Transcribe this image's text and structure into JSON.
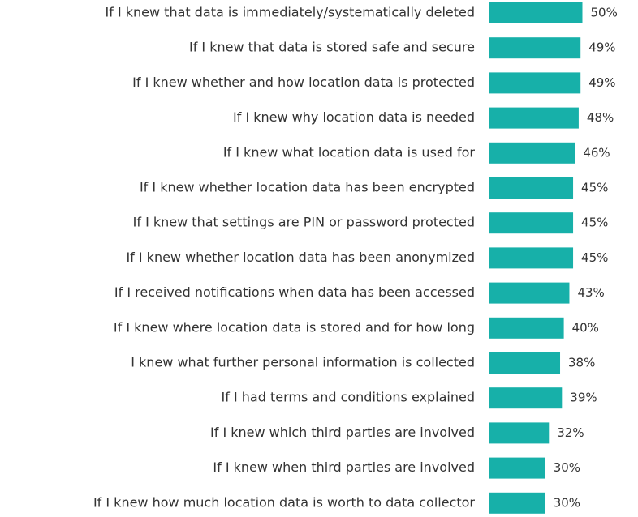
{
  "chart_data": {
    "type": "bar",
    "orientation": "horizontal",
    "categories": [
      "If I knew that data is immediately/systematically deleted",
      "If I knew that data is stored safe and secure",
      "If I knew whether and how location data is protected",
      "If I knew why location data is needed",
      "If I knew what location data is used for",
      "If I knew whether location data has been encrypted",
      "If I knew that settings are PIN or password protected",
      "If I knew whether location data has been anonymized",
      "If I received notifications when data has been accessed",
      "If I knew where location data is stored and for how long",
      "I knew what further personal information is collected",
      "If I had terms and conditions explained",
      "If I knew which third parties are involved",
      "If I knew when third parties are involved",
      "If I knew how much location data is worth to data collector"
    ],
    "values": [
      50,
      49,
      49,
      48,
      46,
      45,
      45,
      45,
      43,
      40,
      38,
      39,
      32,
      30,
      30
    ],
    "value_labels": [
      "50%",
      "49%",
      "49%",
      "48%",
      "46%",
      "45%",
      "45%",
      "45%",
      "43%",
      "40%",
      "38%",
      "39%",
      "32%",
      "30%",
      "30%"
    ],
    "color": "#17b0a9"
  }
}
